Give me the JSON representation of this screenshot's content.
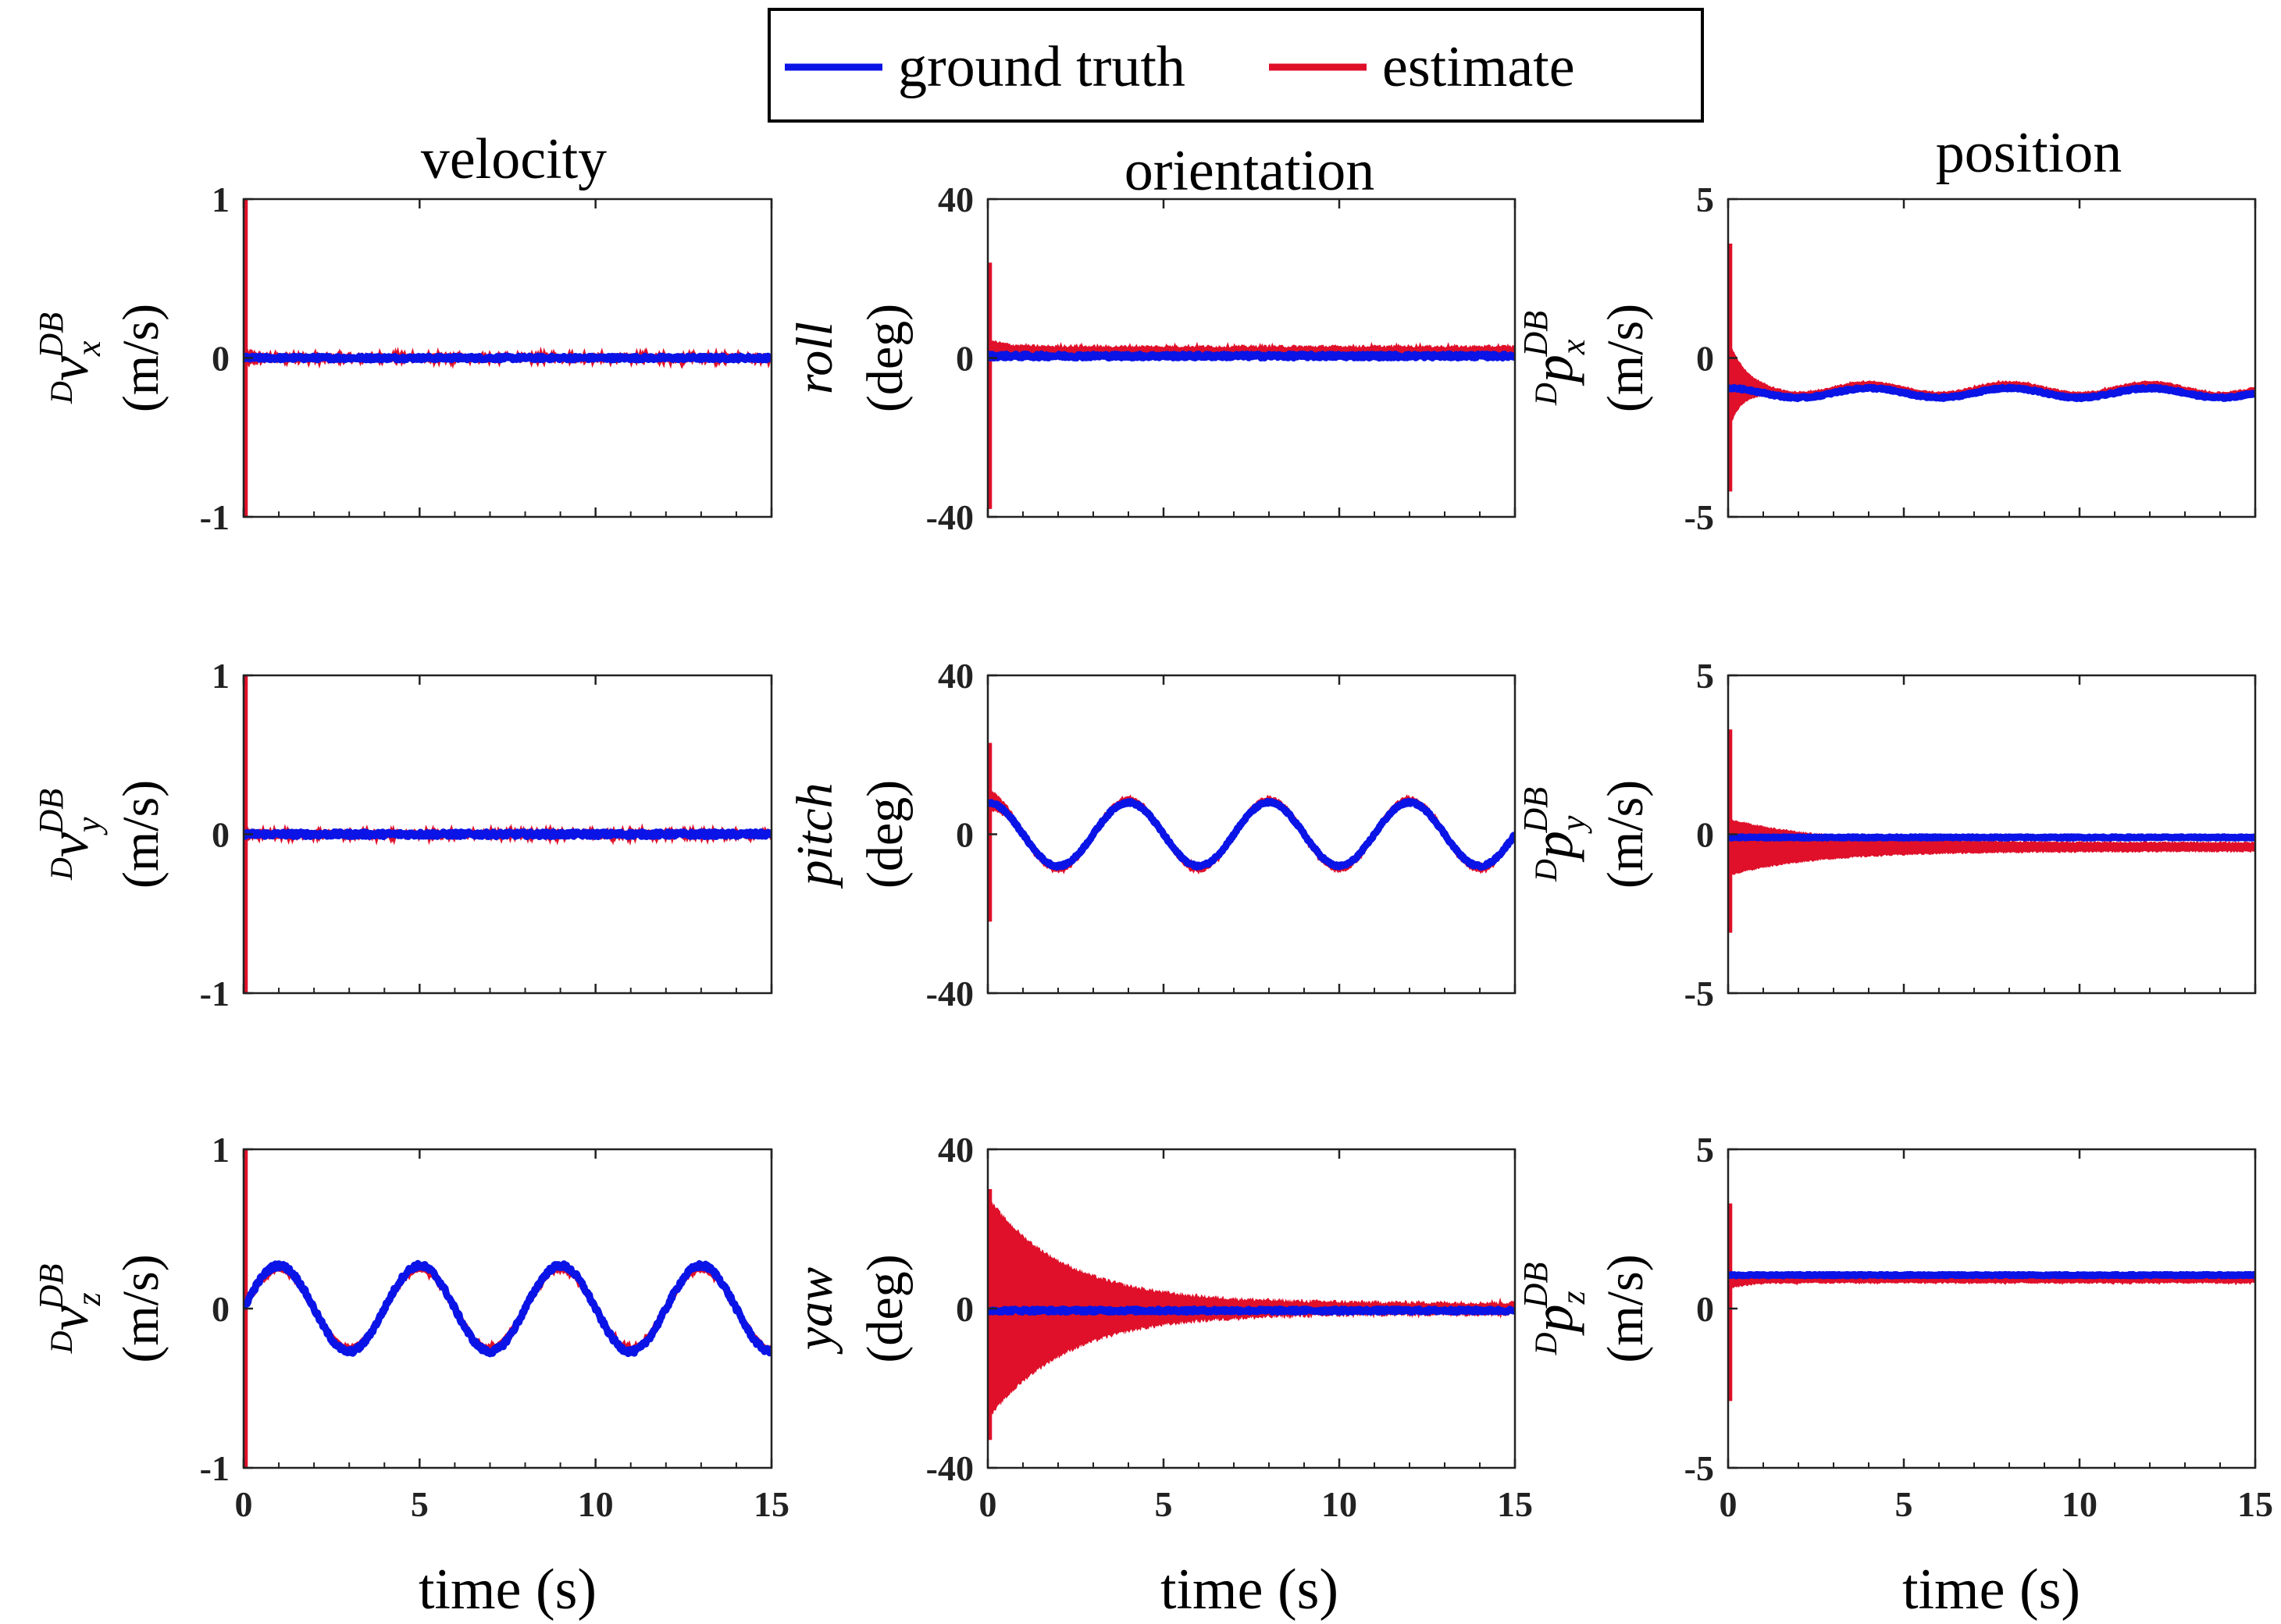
{
  "legend": {
    "entries": [
      {
        "label": "ground truth",
        "color": "#0a14e6"
      },
      {
        "label": "estimate",
        "color": "#e0102a"
      }
    ]
  },
  "columns": [
    {
      "title": "velocity"
    },
    {
      "title": "orientation"
    },
    {
      "title": "position"
    }
  ],
  "xlabel": "time (s)",
  "chart_data": [
    {
      "type": "line",
      "panel": "vx",
      "column": "velocity",
      "ylabel_symbol": "D v_x^DB",
      "ylabel_unit": "(m/s)",
      "xlim": [
        0,
        15
      ],
      "ylim": [
        -1,
        1
      ],
      "xticks": [
        0,
        5,
        10,
        15
      ],
      "yticks": [
        -1,
        0,
        1
      ],
      "series": [
        {
          "name": "ground truth",
          "shape": "noise",
          "offset": 0.0,
          "amplitude": 0.0,
          "period": 4,
          "noise": 0.012
        },
        {
          "name": "estimate",
          "shape": "noise",
          "offset": 0.0,
          "amplitude": 0.0,
          "period": 4,
          "noise": 0.015,
          "initial_spike": [
            -1,
            1
          ],
          "band_start": 0.06,
          "band_end": 0.01,
          "band_decay": 0.6
        }
      ]
    },
    {
      "type": "line",
      "panel": "vy",
      "column": "velocity",
      "ylabel_symbol": "D v_y^DB",
      "ylabel_unit": "(m/s)",
      "xlim": [
        0,
        15
      ],
      "ylim": [
        -1,
        1
      ],
      "xticks": [
        0,
        5,
        10,
        15
      ],
      "yticks": [
        -1,
        0,
        1
      ],
      "series": [
        {
          "name": "ground truth",
          "shape": "noise",
          "offset": 0.0,
          "amplitude": 0.0,
          "period": 4,
          "noise": 0.015
        },
        {
          "name": "estimate",
          "shape": "noise",
          "offset": 0.0,
          "amplitude": 0.0,
          "period": 4,
          "noise": 0.015,
          "initial_spike": [
            -1,
            1
          ],
          "band_start": 0.04,
          "band_end": 0.01,
          "band_decay": 0.6
        }
      ]
    },
    {
      "type": "line",
      "panel": "vz",
      "column": "velocity",
      "ylabel_symbol": "D v_z^DB",
      "ylabel_unit": "(m/s)",
      "xlim": [
        0,
        15
      ],
      "ylim": [
        -1,
        1
      ],
      "xticks": [
        0,
        5,
        10,
        15
      ],
      "yticks": [
        -1,
        0,
        1
      ],
      "series": [
        {
          "name": "ground truth",
          "shape": "sin",
          "offset": 0.0,
          "amplitude": 0.27,
          "period": 4,
          "noise": 0.015
        },
        {
          "name": "estimate",
          "shape": "sin",
          "offset": 0.0,
          "amplitude": 0.25,
          "period": 4,
          "noise": 0.01,
          "initial_spike": [
            -1,
            1
          ],
          "band_start": 0.04,
          "band_end": 0.02,
          "band_decay": 0.6
        }
      ]
    },
    {
      "type": "line",
      "panel": "roll",
      "column": "orientation",
      "ylabel_symbol": "roll",
      "ylabel_unit": "(deg)",
      "xlim": [
        0,
        15
      ],
      "ylim": [
        -40,
        40
      ],
      "xticks": [
        0,
        5,
        10,
        15
      ],
      "yticks": [
        -40,
        0,
        40
      ],
      "series": [
        {
          "name": "ground truth",
          "shape": "noise",
          "offset": 0.5,
          "amplitude": 0.0,
          "period": 4,
          "noise": 0.5
        },
        {
          "name": "estimate",
          "shape": "noise",
          "offset": 1.8,
          "amplitude": 0.0,
          "period": 4,
          "noise": 0.4,
          "initial_spike": [
            -38,
            24
          ],
          "band_start": 3,
          "band_end": 1.2,
          "band_decay": 0.5
        }
      ]
    },
    {
      "type": "line",
      "panel": "pitch",
      "column": "orientation",
      "ylabel_symbol": "pitch",
      "ylabel_unit": "(deg)",
      "xlim": [
        0,
        15
      ],
      "ylim": [
        -40,
        40
      ],
      "xticks": [
        0,
        5,
        10,
        15
      ],
      "yticks": [
        -40,
        0,
        40
      ],
      "series": [
        {
          "name": "ground truth",
          "shape": "cos",
          "offset": 0.0,
          "amplitude": 8,
          "period": 4,
          "noise": 0.3
        },
        {
          "name": "estimate",
          "shape": "cos",
          "offset": 0.0,
          "amplitude": 8.5,
          "period": 4,
          "noise": 0.3,
          "initial_spike": [
            -22,
            23
          ],
          "band_start": 3,
          "band_end": 1,
          "band_decay": 0.5
        }
      ]
    },
    {
      "type": "line",
      "panel": "yaw",
      "column": "orientation",
      "ylabel_symbol": "yaw",
      "ylabel_unit": "(deg)",
      "xlim": [
        0,
        15
      ],
      "ylim": [
        -40,
        40
      ],
      "xticks": [
        0,
        5,
        10,
        15
      ],
      "yticks": [
        -40,
        0,
        40
      ],
      "series": [
        {
          "name": "ground truth",
          "shape": "noise",
          "offset": -0.5,
          "amplitude": 0.0,
          "period": 4,
          "noise": 0.4
        },
        {
          "name": "estimate",
          "shape": "noise",
          "offset": 0.0,
          "amplitude": 0.0,
          "period": 4,
          "noise": 0.5,
          "initial_spike": [
            -33,
            30
          ],
          "band_start": 28,
          "band_end": 1.5,
          "band_decay": 2.2
        }
      ]
    },
    {
      "type": "line",
      "panel": "px",
      "column": "position",
      "ylabel_symbol": "D p_x^DB",
      "ylabel_unit": "(m/s)",
      "xlim": [
        0,
        15
      ],
      "ylim": [
        -5,
        5
      ],
      "xticks": [
        0,
        5,
        10,
        15
      ],
      "yticks": [
        -5,
        0,
        5
      ],
      "series": [
        {
          "name": "ground truth",
          "shape": "cos",
          "offset": -1.1,
          "amplitude": 0.15,
          "period": 4,
          "noise": 0.03
        },
        {
          "name": "estimate",
          "shape": "cos",
          "offset": -1.0,
          "amplitude": 0.17,
          "period": 4,
          "noise": 0.03,
          "initial_spike": [
            -4.2,
            3.6
          ],
          "band_start": 1.5,
          "band_end": 0.1,
          "band_decay": 0.4
        }
      ]
    },
    {
      "type": "line",
      "panel": "py",
      "column": "position",
      "ylabel_symbol": "D p_y^DB",
      "ylabel_unit": "(m/s)",
      "xlim": [
        0,
        15
      ],
      "ylim": [
        -5,
        5
      ],
      "xticks": [
        0,
        5,
        10,
        15
      ],
      "yticks": [
        -5,
        0,
        5
      ],
      "series": [
        {
          "name": "ground truth",
          "shape": "noise",
          "offset": -0.1,
          "amplitude": 0.0,
          "period": 4,
          "noise": 0.02
        },
        {
          "name": "estimate",
          "shape": "noise",
          "offset": -0.4,
          "amplitude": 0.0,
          "period": 4,
          "noise": 0.03,
          "initial_spike": [
            -3.1,
            3.3
          ],
          "band_start": 0.9,
          "band_end": 0.15,
          "band_decay": 2.5
        }
      ]
    },
    {
      "type": "line",
      "panel": "pz",
      "column": "position",
      "ylabel_symbol": "D p_z^DB",
      "ylabel_unit": "(m/s)",
      "xlim": [
        0,
        15
      ],
      "ylim": [
        -5,
        5
      ],
      "xticks": [
        0,
        5,
        10,
        15
      ],
      "yticks": [
        -5,
        0,
        5
      ],
      "series": [
        {
          "name": "ground truth",
          "shape": "noise",
          "offset": 1.05,
          "amplitude": 0.0,
          "period": 4,
          "noise": 0.02
        },
        {
          "name": "estimate",
          "shape": "noise",
          "offset": 0.9,
          "amplitude": 0.0,
          "period": 4,
          "noise": 0.03,
          "initial_spike": [
            -2.9,
            3.3
          ],
          "band_start": 0.3,
          "band_end": 0.1,
          "band_decay": 0.5
        }
      ]
    }
  ]
}
